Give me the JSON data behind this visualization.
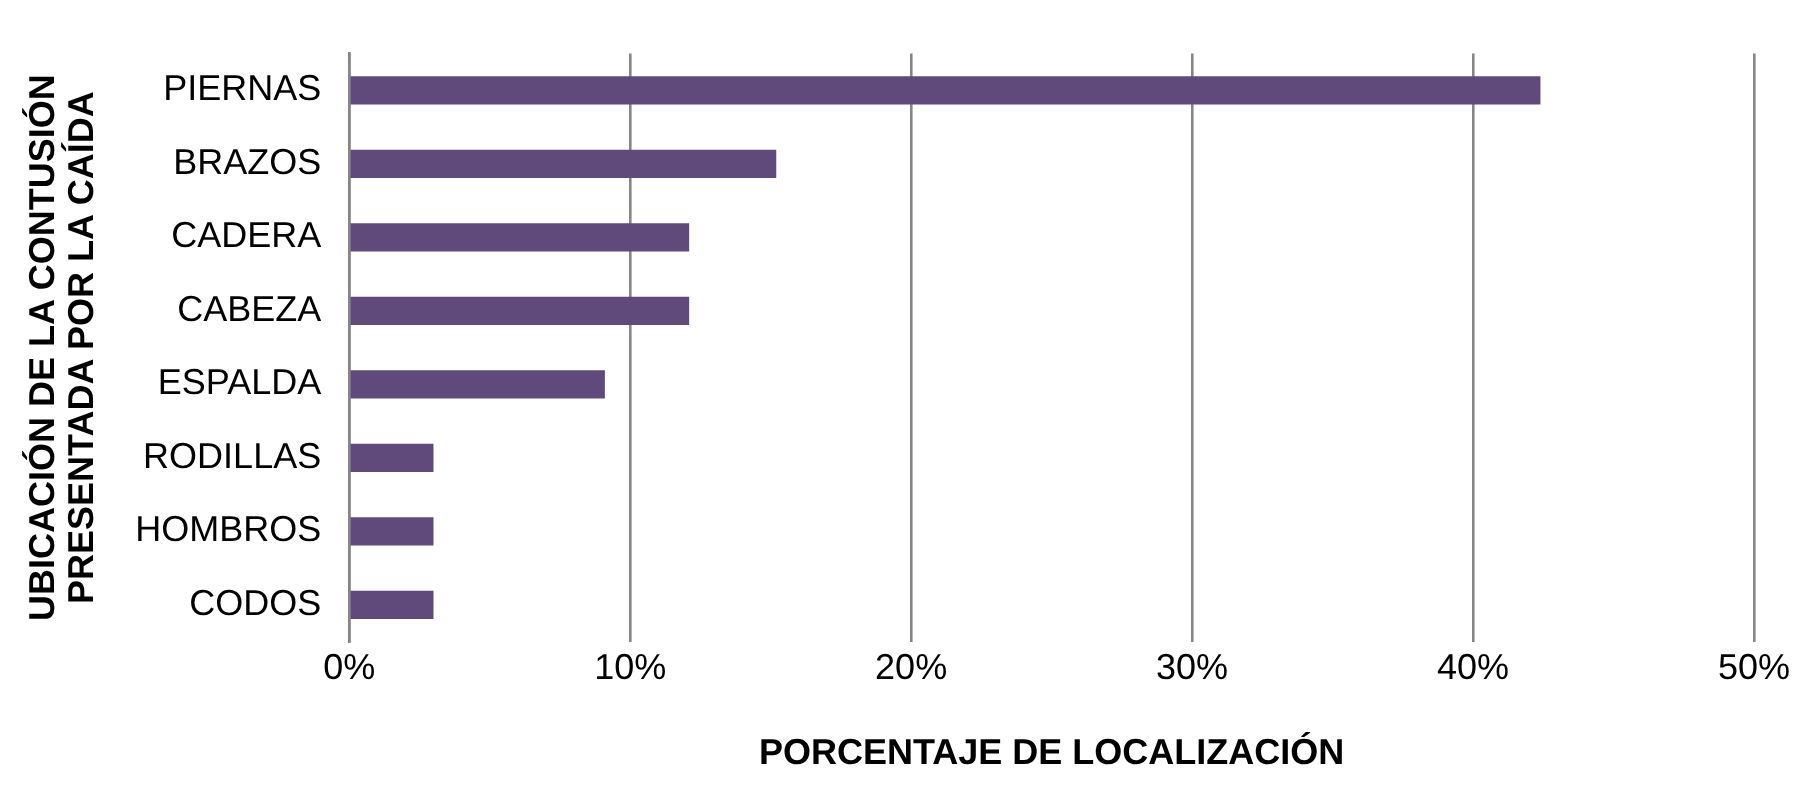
{
  "chart_data": {
    "type": "bar",
    "orientation": "horizontal",
    "xlabel": "PORCENTAJE DE LOCALIZACIÓN",
    "ylabel": "UBICACIÓN DE LA CONTUSIÓN\nPRESENTADA POR LA CAÍDA",
    "categories": [
      "PIERNAS",
      "BRAZOS",
      "CADERA",
      "CABEZA",
      "ESPALDA",
      "RODILLAS",
      "HOMBROS",
      "CODOS"
    ],
    "values": [
      42.4,
      15.2,
      12.1,
      12.1,
      9.1,
      3.0,
      3.0,
      3.0
    ],
    "color": "#604a7b",
    "xlim": [
      0,
      50
    ],
    "xticks": [
      {
        "value": 0,
        "label": "0%"
      },
      {
        "value": 10,
        "label": "10%"
      },
      {
        "value": 20,
        "label": "20%"
      },
      {
        "value": 30,
        "label": "30%"
      },
      {
        "value": 40,
        "label": "40%"
      },
      {
        "value": 50,
        "label": "50%"
      }
    ],
    "grid": "x",
    "legend": false
  }
}
